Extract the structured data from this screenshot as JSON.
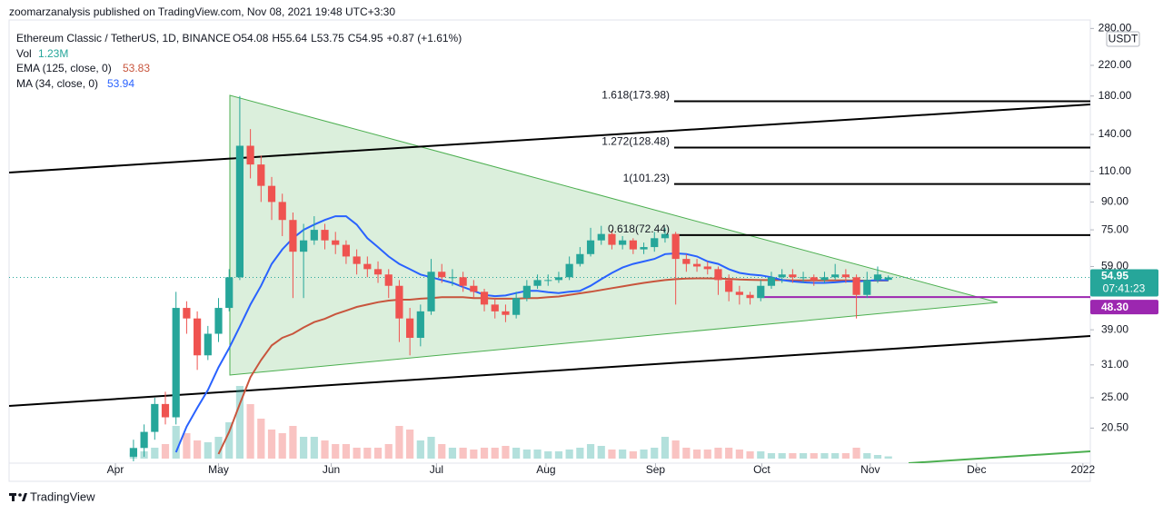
{
  "header": {
    "publisher": "zoomarzanalysis published on TradingView.com, Nov 08, 2021 19:48 UTC+3:30",
    "footer": "TradingView"
  },
  "chart_data": {
    "type": "candlestick",
    "title": "Ethereum Classic / TetherUS, 1D, BINANCE",
    "ohlc_labels": [
      "O",
      "H",
      "L",
      "C"
    ],
    "change": "+0.87 (+1.61%)",
    "currency": "USDT",
    "log_scale": true,
    "xlim": [
      -11.7,
      90
    ],
    "xticks": [
      {
        "value": -1.7,
        "label": "Apr"
      },
      {
        "value": 8,
        "label": "May"
      },
      {
        "value": 18.6,
        "label": "Jun"
      },
      {
        "value": 28.5,
        "label": "Jul"
      },
      {
        "value": 38.8,
        "label": "Aug"
      },
      {
        "value": 49.1,
        "label": "Sep"
      },
      {
        "value": 59.1,
        "label": "Oct"
      },
      {
        "value": 69.3,
        "label": "Nov"
      },
      {
        "value": 79.3,
        "label": "Dec"
      },
      {
        "value": 89.3,
        "label": "2022"
      }
    ],
    "ylim": [
      16.3,
      296
    ],
    "yticks": [
      {
        "value": 280,
        "label": "280.00"
      },
      {
        "value": 220,
        "label": "220.00"
      },
      {
        "value": 180,
        "label": "180.00"
      },
      {
        "value": 140,
        "label": "140.00"
      },
      {
        "value": 110,
        "label": "110.00"
      },
      {
        "value": 90,
        "label": "90.00"
      },
      {
        "value": 75,
        "label": "75.00"
      },
      {
        "value": 59,
        "label": "59.00"
      },
      {
        "value": 39,
        "label": "39.00"
      },
      {
        "value": 31,
        "label": "31.00"
      },
      {
        "value": 25,
        "label": "25.00"
      },
      {
        "value": 20.5,
        "label": "20.50"
      }
    ],
    "open": [
      17,
      18,
      20,
      24,
      22,
      45,
      42,
      33,
      38,
      45,
      55,
      130,
      115,
      100,
      90,
      80,
      65,
      70,
      75,
      70,
      68,
      63,
      60,
      58,
      56,
      52,
      42,
      37,
      44,
      57,
      55,
      55,
      52,
      50,
      46,
      44,
      43,
      48,
      52,
      54,
      54,
      55,
      60,
      64,
      70,
      73,
      68,
      70,
      66,
      67,
      71,
      73,
      62,
      60,
      59,
      58,
      54,
      50,
      49,
      48,
      52,
      55,
      56,
      55,
      55,
      54,
      55,
      56,
      55,
      49,
      54,
      54.08
    ],
    "high": [
      19,
      21,
      25,
      26,
      50,
      47,
      44,
      40,
      48,
      58,
      180,
      145,
      122,
      106,
      95,
      84,
      78,
      82,
      78,
      74,
      70,
      66,
      63,
      61,
      58,
      54,
      45,
      46,
      62,
      60,
      58,
      57,
      54,
      51,
      48,
      46,
      50,
      54,
      56,
      56,
      57,
      63,
      67,
      76,
      77,
      75,
      72,
      71,
      69,
      74,
      76,
      74,
      64,
      62,
      61,
      59,
      56,
      52,
      50,
      54,
      57,
      58,
      58,
      57,
      56,
      57,
      60,
      58,
      56,
      57,
      59,
      55.64
    ],
    "low": [
      16.5,
      17,
      19,
      21,
      21,
      38,
      30,
      32,
      36,
      44,
      54,
      105,
      90,
      80,
      72,
      48,
      48,
      68,
      66,
      64,
      60,
      56,
      55,
      53,
      48,
      36,
      33,
      35,
      43,
      53,
      52,
      50,
      48,
      44,
      42,
      41,
      42,
      47,
      51,
      52,
      53,
      54,
      59,
      63,
      68,
      66,
      66,
      64,
      64,
      65,
      69,
      46,
      57,
      57,
      56,
      49,
      47,
      46,
      46,
      47,
      51,
      53,
      53,
      53,
      52,
      53,
      54,
      53,
      42,
      48,
      53,
      53.75
    ],
    "close": [
      18,
      20,
      24,
      22,
      45,
      42,
      33,
      38,
      45,
      55,
      130,
      115,
      100,
      90,
      80,
      65,
      70,
      75,
      70,
      68,
      63,
      60,
      58,
      56,
      52,
      42,
      37,
      44,
      57,
      55,
      55,
      52,
      50,
      46,
      44,
      43,
      48,
      52,
      54,
      54,
      55,
      60,
      64,
      70,
      73,
      68,
      70,
      66,
      67,
      71,
      73,
      62,
      60,
      59,
      58,
      54,
      50,
      49,
      48,
      52,
      55,
      56,
      55,
      55,
      54,
      55,
      56,
      55,
      49,
      54,
      56,
      54.95
    ],
    "up_color": "#26a69a",
    "down_color": "#ef5350",
    "volume": {
      "name": "Vol",
      "label": "1.23M",
      "values": [
        3,
        4,
        6,
        8,
        18,
        14,
        10,
        9,
        12,
        20,
        40,
        30,
        22,
        16,
        14,
        18,
        12,
        12,
        10,
        8,
        8,
        6,
        6,
        6,
        8,
        18,
        16,
        10,
        12,
        8,
        6,
        6,
        5,
        6,
        6,
        7,
        6,
        5,
        5,
        4,
        4,
        5,
        6,
        8,
        7,
        5,
        5,
        4,
        5,
        6,
        12,
        10,
        6,
        5,
        5,
        6,
        6,
        5,
        4,
        4,
        3,
        3,
        3,
        3,
        3,
        3,
        3,
        3,
        6,
        3,
        2,
        1.23
      ]
    },
    "series": [
      {
        "name": "EMA (125, close, 0)",
        "color": "#c8553d",
        "values": [
          null,
          null,
          null,
          null,
          null,
          null,
          null,
          null,
          17.3,
          20,
          24,
          28.6,
          32,
          35.2,
          37,
          38,
          39.6,
          41,
          41.9,
          43.2,
          44.2,
          45.3,
          46,
          46.7,
          47.2,
          47.5,
          47.5,
          47.8,
          48,
          48.3,
          48.3,
          48.3,
          48,
          48,
          47.8,
          47.8,
          47.8,
          48,
          48,
          48.3,
          48.5,
          49,
          49.5,
          50,
          50.6,
          51.2,
          51.8,
          52.4,
          53,
          53.5,
          54,
          54.3,
          54.5,
          54.6,
          54.6,
          54.5,
          54.4,
          54.2,
          54.1,
          54,
          54,
          54,
          53.9,
          53.9,
          53.9,
          53.9,
          53.9,
          53.9,
          53.8,
          53.8,
          53.8,
          53.83
        ]
      },
      {
        "name": "MA (34, close, 0)",
        "color": "#2962ff",
        "values": [
          null,
          null,
          null,
          null,
          17.5,
          20.7,
          23.4,
          26.3,
          30.5,
          34.6,
          39.8,
          46,
          52,
          60,
          66,
          71,
          75,
          77.6,
          80,
          82,
          82,
          77.6,
          71,
          67,
          63,
          60,
          58,
          56,
          55,
          54,
          53,
          51.6,
          50.3,
          49,
          48.6,
          48.8,
          49.6,
          50.3,
          50.3,
          49.9,
          49.6,
          50,
          50.3,
          52,
          54.3,
          56.6,
          58.6,
          60,
          61,
          62,
          64,
          64.3,
          64,
          63,
          61,
          60,
          58,
          56.6,
          56,
          55.7,
          55,
          54,
          53.5,
          53.2,
          53,
          53,
          53.2,
          53.5,
          53.5,
          53.7,
          54,
          53.94
        ]
      }
    ],
    "fib_levels": [
      {
        "value": 173.98,
        "label": "1.618(173.98)"
      },
      {
        "value": 128.48,
        "label": "1.272(128.48)"
      },
      {
        "value": 101.23,
        "label": "1(101.23)"
      },
      {
        "value": 72.44,
        "label": "0.618(72.44)"
      }
    ],
    "horizontal_level": {
      "value": 48.3,
      "label": "48.30",
      "color": "#9c27b0"
    },
    "last_price": {
      "value": 54.95,
      "label": "54.95",
      "countdown": "07:41:23",
      "color": "#26a69a"
    }
  }
}
